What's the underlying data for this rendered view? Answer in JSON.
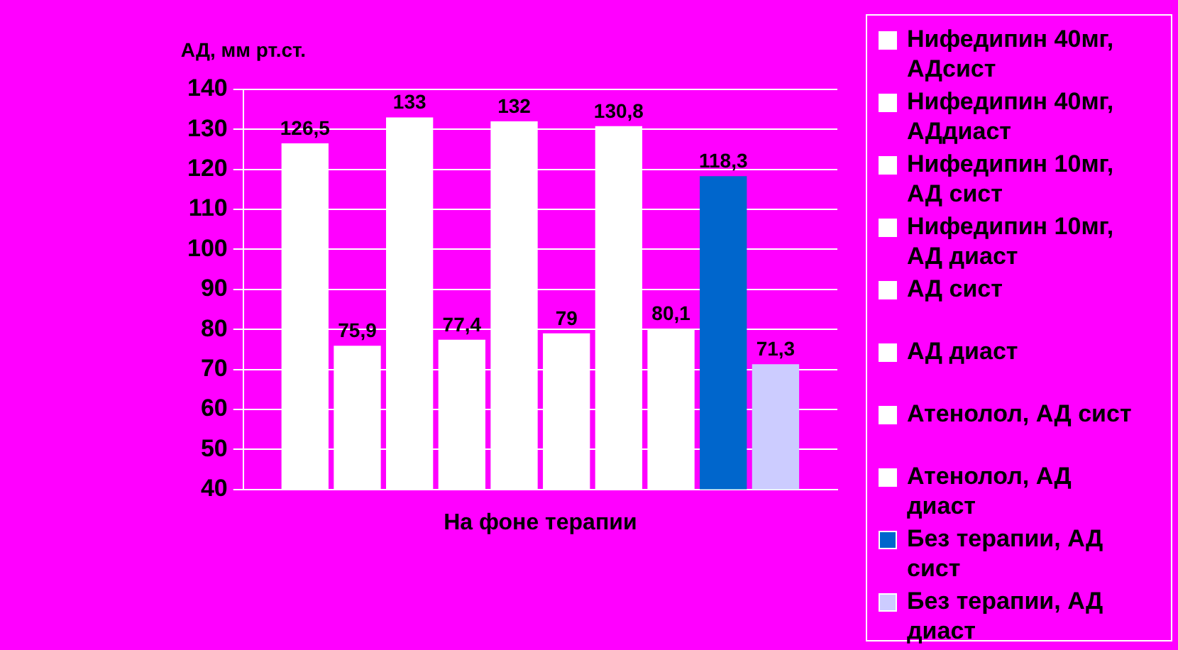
{
  "chart_data": {
    "type": "bar",
    "ylabel": "АД, мм рт.ст.",
    "categories": [
      "На фоне терапии"
    ],
    "series": [
      {
        "name": "Нифедипин 40мг, АДсист",
        "color": "#ffffff",
        "values": [
          126.5
        ],
        "value_labels": [
          "126,5"
        ]
      },
      {
        "name": "Нифедипин 40мг, АДдиаст",
        "color": "#ffffff",
        "values": [
          75.9
        ],
        "value_labels": [
          "75,9"
        ]
      },
      {
        "name": "Нифедипин 10мг, АД сист",
        "color": "#ffffff",
        "values": [
          133
        ],
        "value_labels": [
          "133"
        ]
      },
      {
        "name": "Нифедипин 10мг, АД диаст",
        "color": "#ffffff",
        "values": [
          77.4
        ],
        "value_labels": [
          "77,4"
        ]
      },
      {
        "name": "АД сист",
        "color": "#ffffff",
        "values": [
          132
        ],
        "value_labels": [
          "132"
        ]
      },
      {
        "name": "АД диаст",
        "color": "#ffffff",
        "values": [
          79
        ],
        "value_labels": [
          "79"
        ]
      },
      {
        "name": "Атенолол, АД сист",
        "color": "#ffffff",
        "values": [
          130.8
        ],
        "value_labels": [
          "130,8"
        ]
      },
      {
        "name": "Атенолол, АД диаст",
        "color": "#ffffff",
        "values": [
          80.1
        ],
        "value_labels": [
          "80,1"
        ]
      },
      {
        "name": "Без терапии, АД сист",
        "color": "#0066cc",
        "values": [
          118.3
        ],
        "value_labels": [
          "118,3"
        ]
      },
      {
        "name": "Без терапии, АД диаст",
        "color": "#ccccff",
        "values": [
          71.3
        ],
        "value_labels": [
          "71,3"
        ]
      }
    ],
    "ylim": [
      40,
      140
    ],
    "yticks": [
      40,
      50,
      60,
      70,
      80,
      90,
      100,
      110,
      120,
      130,
      140
    ],
    "grid": "y",
    "legend": "right"
  }
}
